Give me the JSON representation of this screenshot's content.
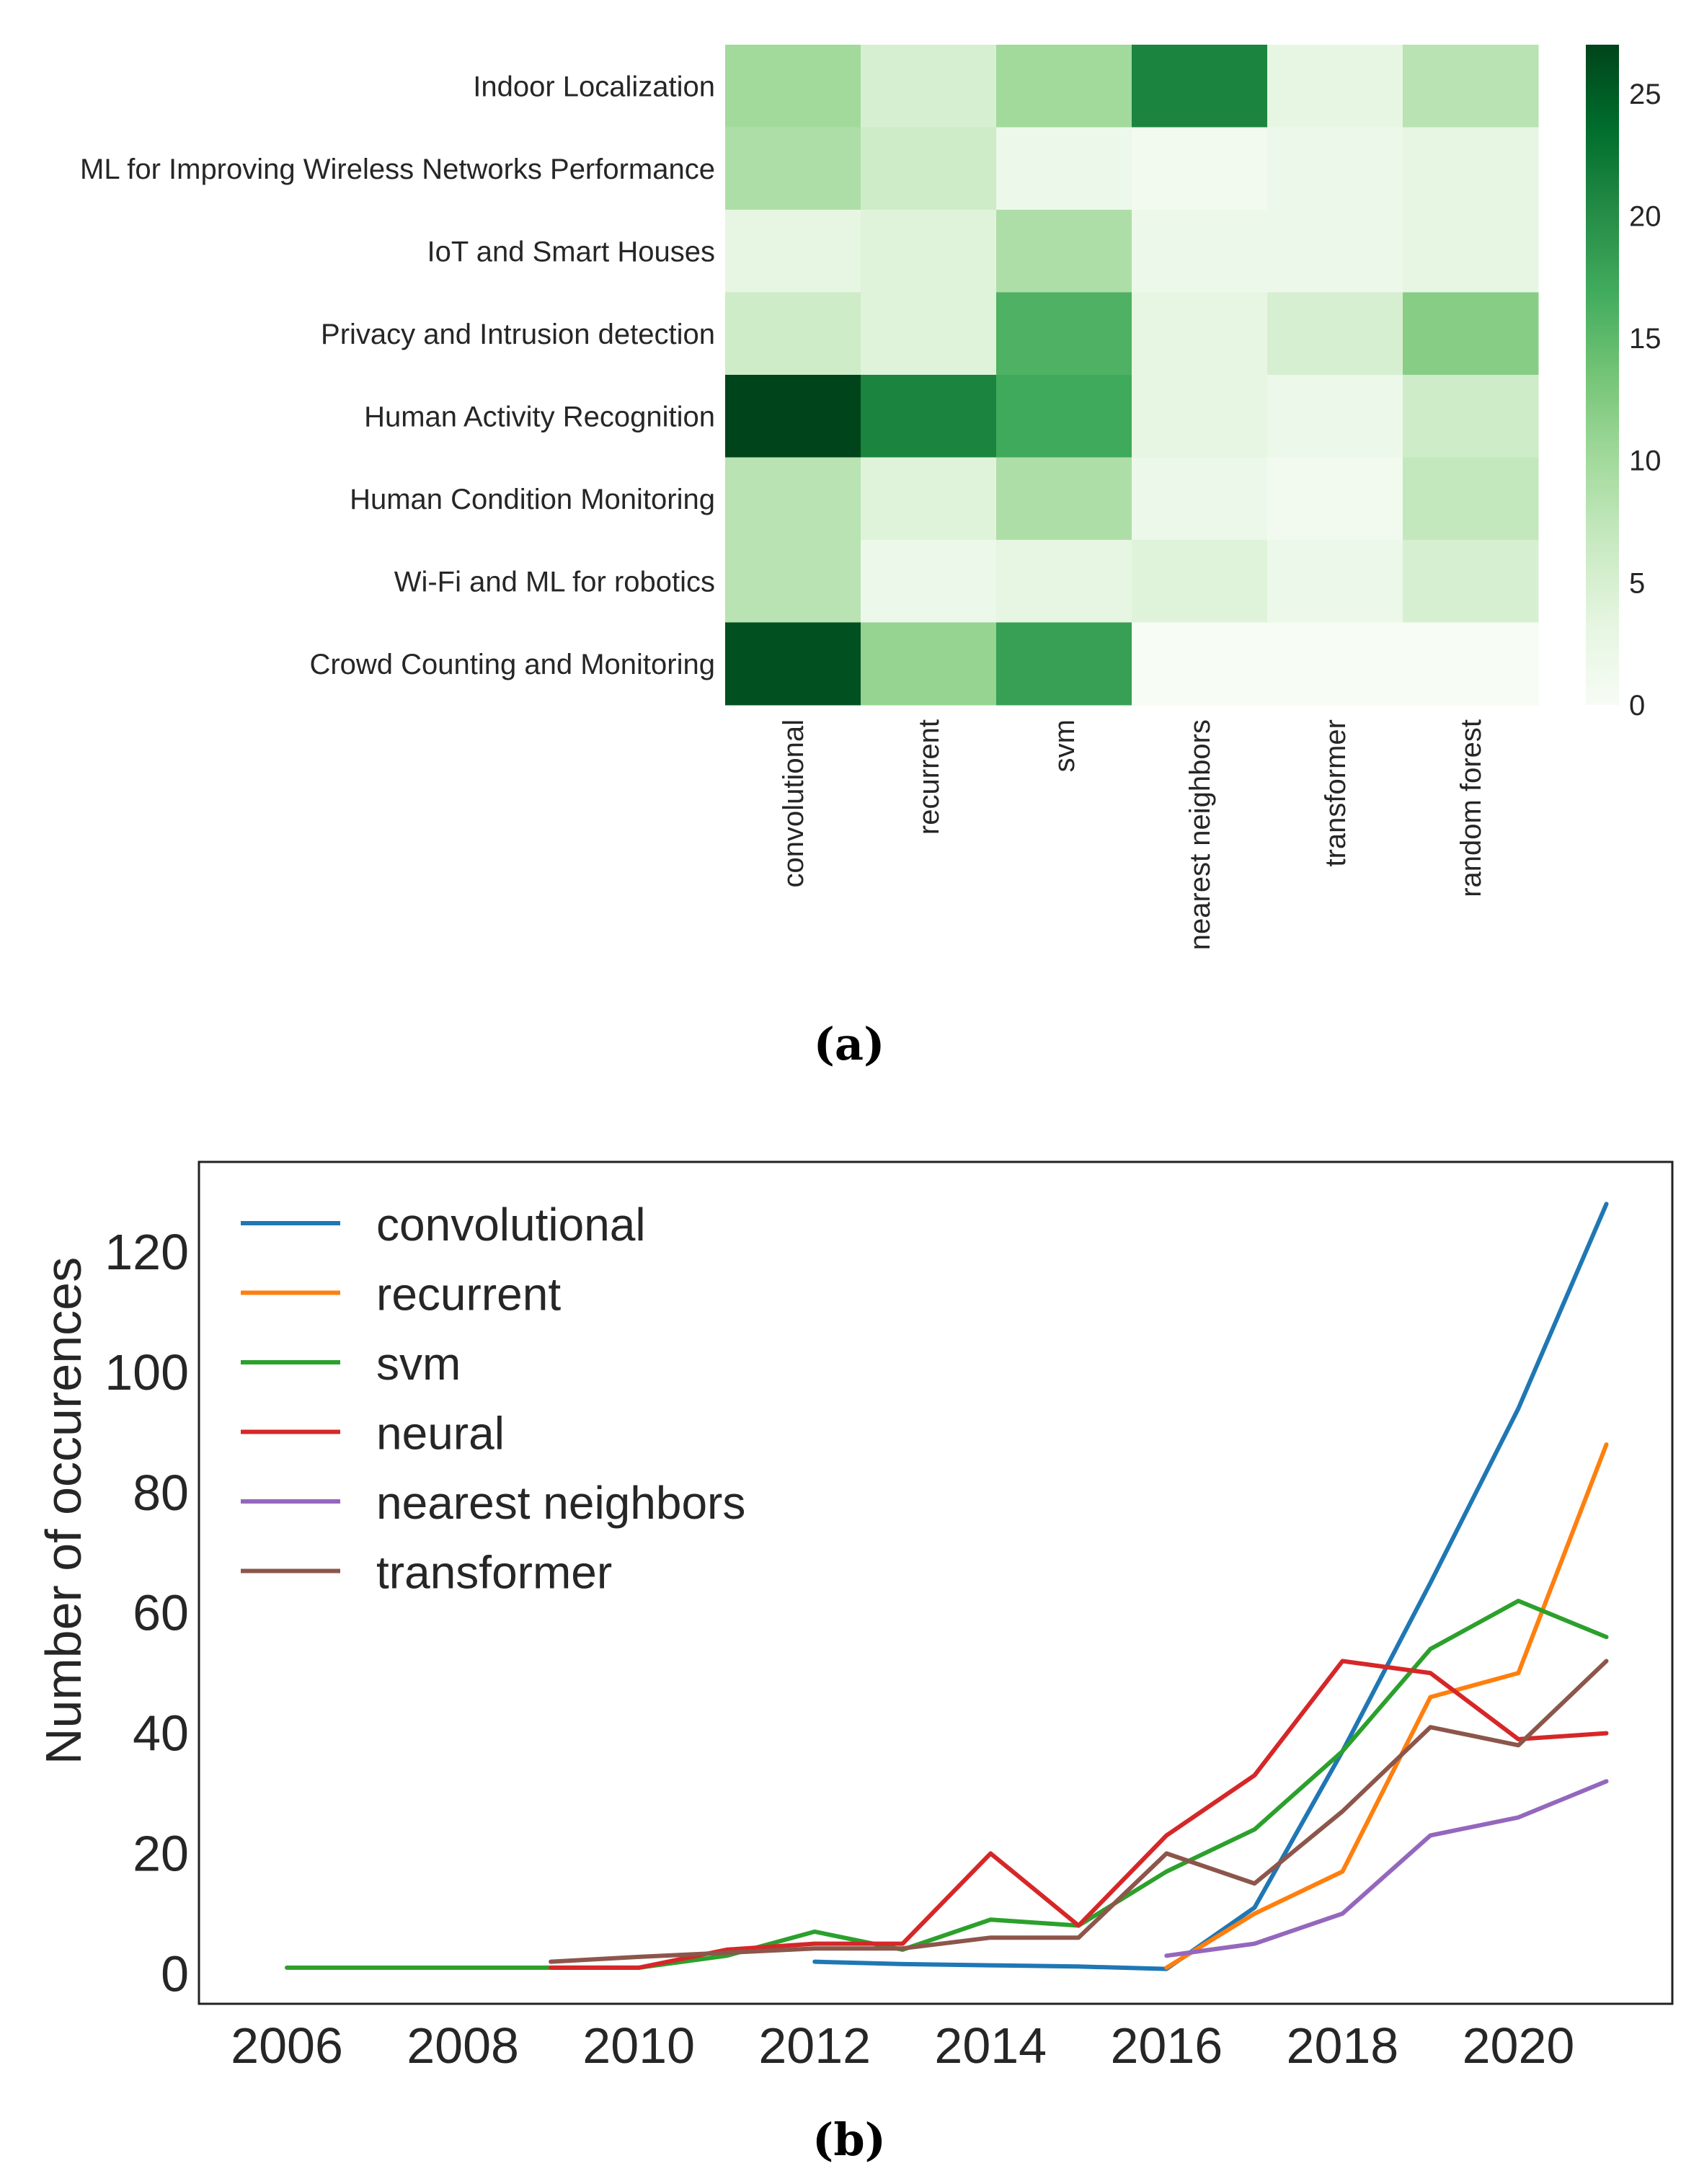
{
  "chart_data": [
    {
      "type": "heatmap",
      "panel_label": "(a)",
      "rows": [
        "Indoor Localization",
        "ML for Improving Wireless Networks Performance",
        "IoT and Smart Houses",
        "Privacy and Intrusion detection",
        "Human Activity Recognition",
        "Human Condition Monitoring",
        "Wi-Fi and ML for robotics",
        "Crowd Counting and Monitoring"
      ],
      "columns": [
        "convolutional",
        "recurrent",
        "svm",
        "nearest neighbors",
        "transformer",
        "random forest"
      ],
      "values": [
        [
          10,
          5,
          10,
          21,
          3,
          8
        ],
        [
          9,
          6,
          2,
          1,
          2,
          3
        ],
        [
          3,
          4,
          9,
          2,
          2,
          3
        ],
        [
          6,
          4,
          16,
          3,
          5,
          12
        ],
        [
          27,
          21,
          17,
          3,
          2,
          6
        ],
        [
          8,
          4,
          9,
          2,
          1,
          7
        ],
        [
          8,
          2,
          3,
          4,
          2,
          5
        ],
        [
          26,
          11,
          18,
          0,
          0,
          0
        ]
      ],
      "colorbar": {
        "vmin": 0,
        "vmax": 27,
        "ticks": [
          "0",
          "5",
          "10",
          "15",
          "20",
          "25"
        ],
        "colors": [
          "#f7fcf5",
          "#e5f5e0",
          "#c7e9c0",
          "#a1d99b",
          "#74c476",
          "#41ab5d",
          "#238b45",
          "#006d2c",
          "#00441b"
        ]
      }
    },
    {
      "type": "line",
      "panel_label": "(b)",
      "ylabel": "Number of occurences",
      "xlim": [
        2005.0,
        2021.75
      ],
      "ylim": [
        -5,
        135
      ],
      "xticks": [
        "2006",
        "2008",
        "2010",
        "2012",
        "2014",
        "2016",
        "2018",
        "2020"
      ],
      "yticks": [
        "0",
        "20",
        "40",
        "60",
        "80",
        "100",
        "120"
      ],
      "legend_position": "upper-left",
      "series": [
        {
          "name": "convolutional",
          "color": "#1f77b4",
          "points": [
            [
              2012,
              2
            ],
            [
              2013,
              1.6
            ],
            [
              2014,
              1.4
            ],
            [
              2015,
              1.2
            ],
            [
              2016,
              0.8
            ],
            [
              2017,
              11
            ],
            [
              2018,
              37
            ],
            [
              2019,
              65
            ],
            [
              2020,
              94
            ],
            [
              2021,
              128
            ]
          ]
        },
        {
          "name": "recurrent",
          "color": "#ff7f0e",
          "points": [
            [
              2016,
              1
            ],
            [
              2017,
              10
            ],
            [
              2018,
              17
            ],
            [
              2019,
              46
            ],
            [
              2020,
              50
            ],
            [
              2021,
              88
            ]
          ]
        },
        {
          "name": "svm",
          "color": "#2ca02c",
          "points": [
            [
              2006,
              1
            ],
            [
              2007,
              1
            ],
            [
              2008,
              1
            ],
            [
              2009,
              1
            ],
            [
              2010,
              1
            ],
            [
              2011,
              3
            ],
            [
              2012,
              7
            ],
            [
              2013,
              4
            ],
            [
              2014,
              9
            ],
            [
              2015,
              8
            ],
            [
              2016,
              17
            ],
            [
              2017,
              24
            ],
            [
              2018,
              37
            ],
            [
              2019,
              54
            ],
            [
              2020,
              62
            ],
            [
              2021,
              56
            ]
          ]
        },
        {
          "name": "neural",
          "color": "#d62728",
          "points": [
            [
              2009,
              1
            ],
            [
              2010,
              1
            ],
            [
              2011,
              4
            ],
            [
              2012,
              5
            ],
            [
              2013,
              5
            ],
            [
              2014,
              20
            ],
            [
              2015,
              8
            ],
            [
              2016,
              23
            ],
            [
              2017,
              33
            ],
            [
              2018,
              52
            ],
            [
              2019,
              50
            ],
            [
              2020,
              39
            ],
            [
              2021,
              40
            ]
          ]
        },
        {
          "name": "nearest neighbors",
          "color": "#9467bd",
          "points": [
            [
              2016,
              3
            ],
            [
              2017,
              5
            ],
            [
              2018,
              10
            ],
            [
              2019,
              23
            ],
            [
              2020,
              26
            ],
            [
              2021,
              32
            ]
          ]
        },
        {
          "name": "transformer",
          "color": "#8c564b",
          "points": [
            [
              2009,
              2
            ],
            [
              2010,
              2.8
            ],
            [
              2011,
              3.5
            ],
            [
              2012,
              4.2
            ],
            [
              2013,
              4.2
            ],
            [
              2014,
              6
            ],
            [
              2015,
              6
            ],
            [
              2016,
              20
            ],
            [
              2017,
              15
            ],
            [
              2018,
              27
            ],
            [
              2019,
              41
            ],
            [
              2020,
              38
            ],
            [
              2021,
              52
            ]
          ]
        }
      ]
    }
  ]
}
